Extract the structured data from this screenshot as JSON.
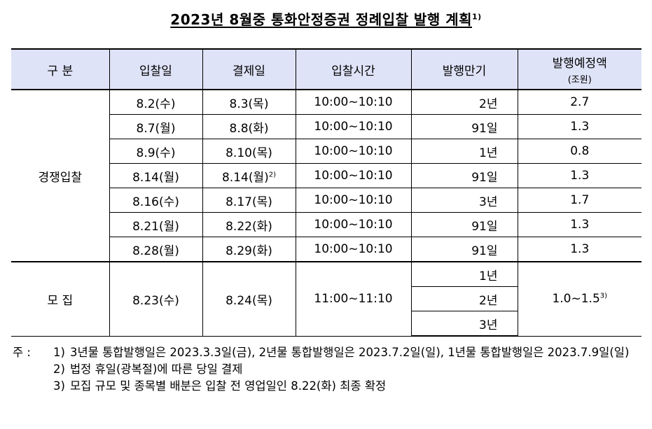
{
  "title": {
    "text": "2023년 8월중 통화안정증권 정례입찰 발행 계획",
    "footnote": "1)"
  },
  "table": {
    "headers": [
      "구 분",
      "입찰일",
      "결제일",
      "입찰시간",
      "발행만기",
      "발행예정액"
    ],
    "amount_unit": "(조원)",
    "competitive": {
      "label": "경쟁입찰",
      "rows": [
        {
          "bid": "8.2(수)",
          "settle": "8.3(목)",
          "settle_fn": "",
          "time": "10:00~10:10",
          "maturity": "2년",
          "amount": "2.7"
        },
        {
          "bid": "8.7(월)",
          "settle": "8.8(화)",
          "settle_fn": "",
          "time": "10:00~10:10",
          "maturity": "91일",
          "amount": "1.3"
        },
        {
          "bid": "8.9(수)",
          "settle": "8.10(목)",
          "settle_fn": "",
          "time": "10:00~10:10",
          "maturity": "1년",
          "amount": "0.8"
        },
        {
          "bid": "8.14(월)",
          "settle": "8.14(월)",
          "settle_fn": "2)",
          "time": "10:00~10:10",
          "maturity": "91일",
          "amount": "1.3"
        },
        {
          "bid": "8.16(수)",
          "settle": "8.17(목)",
          "settle_fn": "",
          "time": "10:00~10:10",
          "maturity": "3년",
          "amount": "1.7"
        },
        {
          "bid": "8.21(월)",
          "settle": "8.22(화)",
          "settle_fn": "",
          "time": "10:00~10:10",
          "maturity": "91일",
          "amount": "1.3"
        },
        {
          "bid": "8.28(월)",
          "settle": "8.29(화)",
          "settle_fn": "",
          "time": "10:00~10:10",
          "maturity": "91일",
          "amount": "1.3"
        }
      ]
    },
    "offering": {
      "label": "모 집",
      "bid": "8.23(수)",
      "settle": "8.24(목)",
      "time": "11:00~11:10",
      "maturities": [
        "1년",
        "2년",
        "3년"
      ],
      "amount": "1.0~1.5",
      "amount_fn": "3)"
    }
  },
  "notes": {
    "lead": "주 :",
    "items": [
      {
        "num": "1)",
        "text": "3년물 통합발행일은 2023.3.3일(금), 2년물 통합발행일은 2023.7.2일(일), 1년물 통합발행일은 2023.7.9일(일)"
      },
      {
        "num": "2)",
        "text": "법정 휴일(광복절)에 따른 당일 결제"
      },
      {
        "num": "3)",
        "text": "모집 규모 및 종목별 배분은 입찰 전 영업일인 8.22(화) 최종 확정"
      }
    ]
  }
}
